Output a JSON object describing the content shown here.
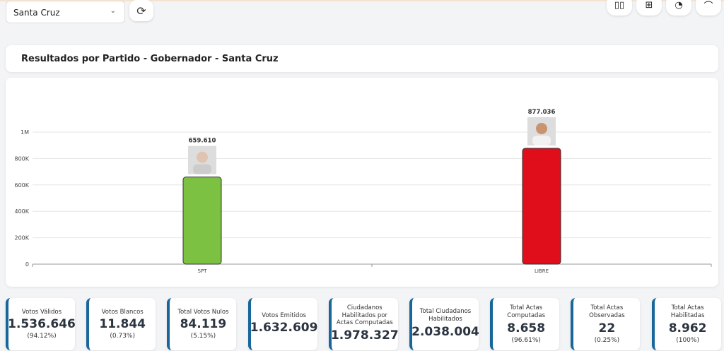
{
  "filter": {
    "selected": "Santa Cruz"
  },
  "view_buttons": [
    "bar-chart-icon",
    "table-icon",
    "pie-chart-icon",
    "line-chart-icon"
  ],
  "title": "Resultados por Partido - Gobernador - Santa Cruz",
  "chart_data": {
    "type": "bar",
    "categories": [
      "SPT",
      "LIBRE"
    ],
    "values": [
      659610,
      877036
    ],
    "value_labels": [
      "659.610",
      "877.036"
    ],
    "colors": [
      "#7dc142",
      "#e00d1a"
    ],
    "yticks": [
      0,
      200000,
      400000,
      600000,
      800000,
      1000000
    ],
    "ytick_labels": [
      "0",
      "200K",
      "400K",
      "600K",
      "800K",
      "1M"
    ],
    "ylim": [
      0,
      1000000
    ],
    "grid": true
  },
  "stats": [
    {
      "label": "Votos Válidos",
      "value": "1.536.646",
      "pct": "(94.12%)"
    },
    {
      "label": "Votos Blancos",
      "value": "11.844",
      "pct": "(0.73%)"
    },
    {
      "label": "Total Votos Nulos",
      "value": "84.119",
      "pct": "(5.15%)"
    },
    {
      "label": "Votos Emitidos",
      "value": "1.632.609"
    },
    {
      "label": "Ciudadanos Habilitados por Actas Computadas",
      "value": "1.978.327"
    },
    {
      "label": "Total Ciudadanos Habilitados",
      "value": "2.038.004"
    },
    {
      "label": "Total Actas Computadas",
      "value": "8.658",
      "pct": "(96.61%)"
    },
    {
      "label": "Total Actas Observadas",
      "value": "22",
      "pct": "(0.25%)"
    },
    {
      "label": "Total Actas Habilitadas",
      "value": "8.962",
      "pct": "(100%)"
    }
  ]
}
